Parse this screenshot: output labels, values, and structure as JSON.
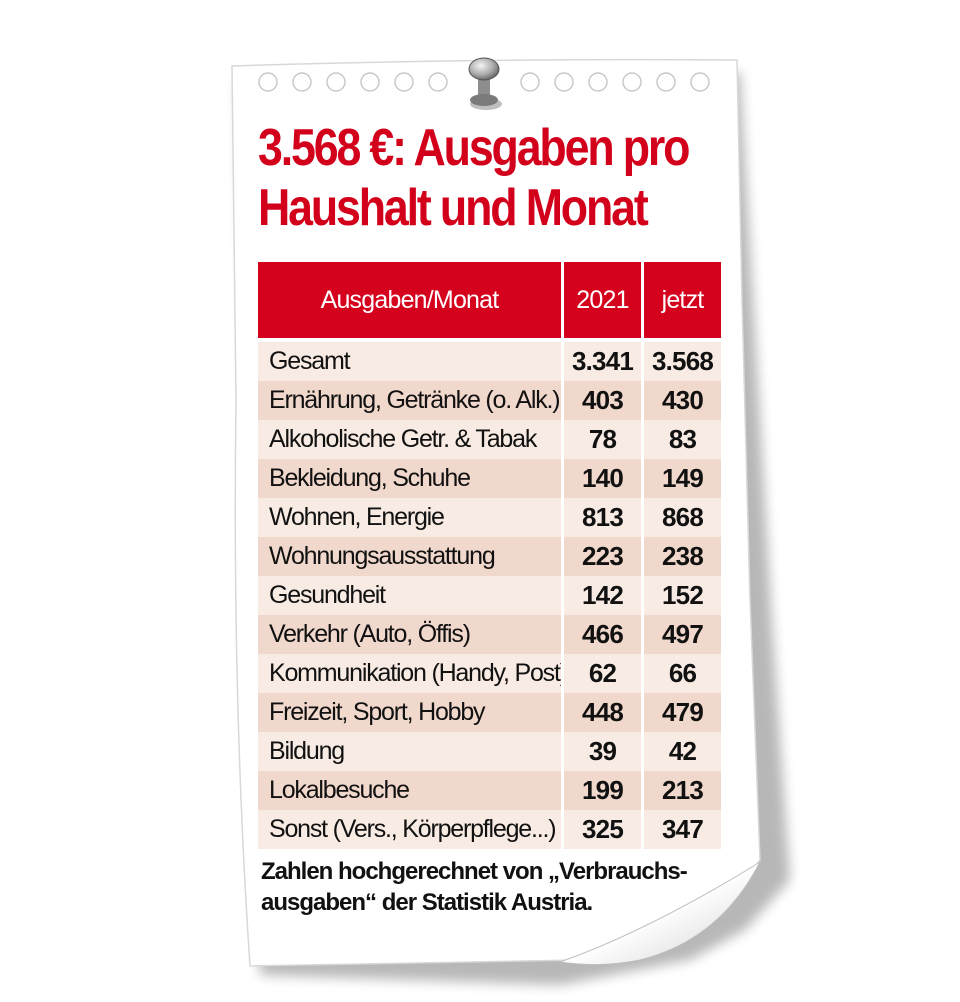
{
  "title_line1": "3.568 €: Ausgaben pro",
  "title_line2": "Haushalt und  Monat",
  "colors": {
    "accent_red": "#d4021d",
    "row_light": "#f8ebe4",
    "row_dark": "#f1d8cc",
    "paper": "#ffffff"
  },
  "icons": [
    "push-pin-icon"
  ],
  "chart_data": {
    "type": "table",
    "columns": [
      "Ausgaben/Monat",
      "2021",
      "jetzt"
    ],
    "rows": [
      {
        "label": "Gesamt",
        "v2021": "3.341",
        "jetzt": "3.568"
      },
      {
        "label": "Ernährung, Getränke (o. Alk.)",
        "v2021": "403",
        "jetzt": "430"
      },
      {
        "label": "Alkoholische Getr. & Tabak",
        "v2021": "78",
        "jetzt": "83"
      },
      {
        "label": "Bekleidung, Schuhe",
        "v2021": "140",
        "jetzt": "149"
      },
      {
        "label": "Wohnen, Energie",
        "v2021": "813",
        "jetzt": "868"
      },
      {
        "label": "Wohnungsausstattung",
        "v2021": "223",
        "jetzt": "238"
      },
      {
        "label": "Gesundheit",
        "v2021": "142",
        "jetzt": "152"
      },
      {
        "label": "Verkehr (Auto, Öffis)",
        "v2021": "466",
        "jetzt": "497"
      },
      {
        "label": "Kommunikation (Handy, Post)",
        "v2021": "62",
        "jetzt": "66"
      },
      {
        "label": "Freizeit, Sport, Hobby",
        "v2021": "448",
        "jetzt": "479"
      },
      {
        "label": "Bildung",
        "v2021": "39",
        "jetzt": "42"
      },
      {
        "label": "Lokalbesuche",
        "v2021": "199",
        "jetzt": "213"
      },
      {
        "label": "Sonst (Vers., Körperpflege...)",
        "v2021": "325",
        "jetzt": "347"
      }
    ]
  },
  "footnote_line1": "Zahlen hochgerechnet von „Verbrauchs-",
  "footnote_line2": "ausgaben“ der Statistik Austria."
}
